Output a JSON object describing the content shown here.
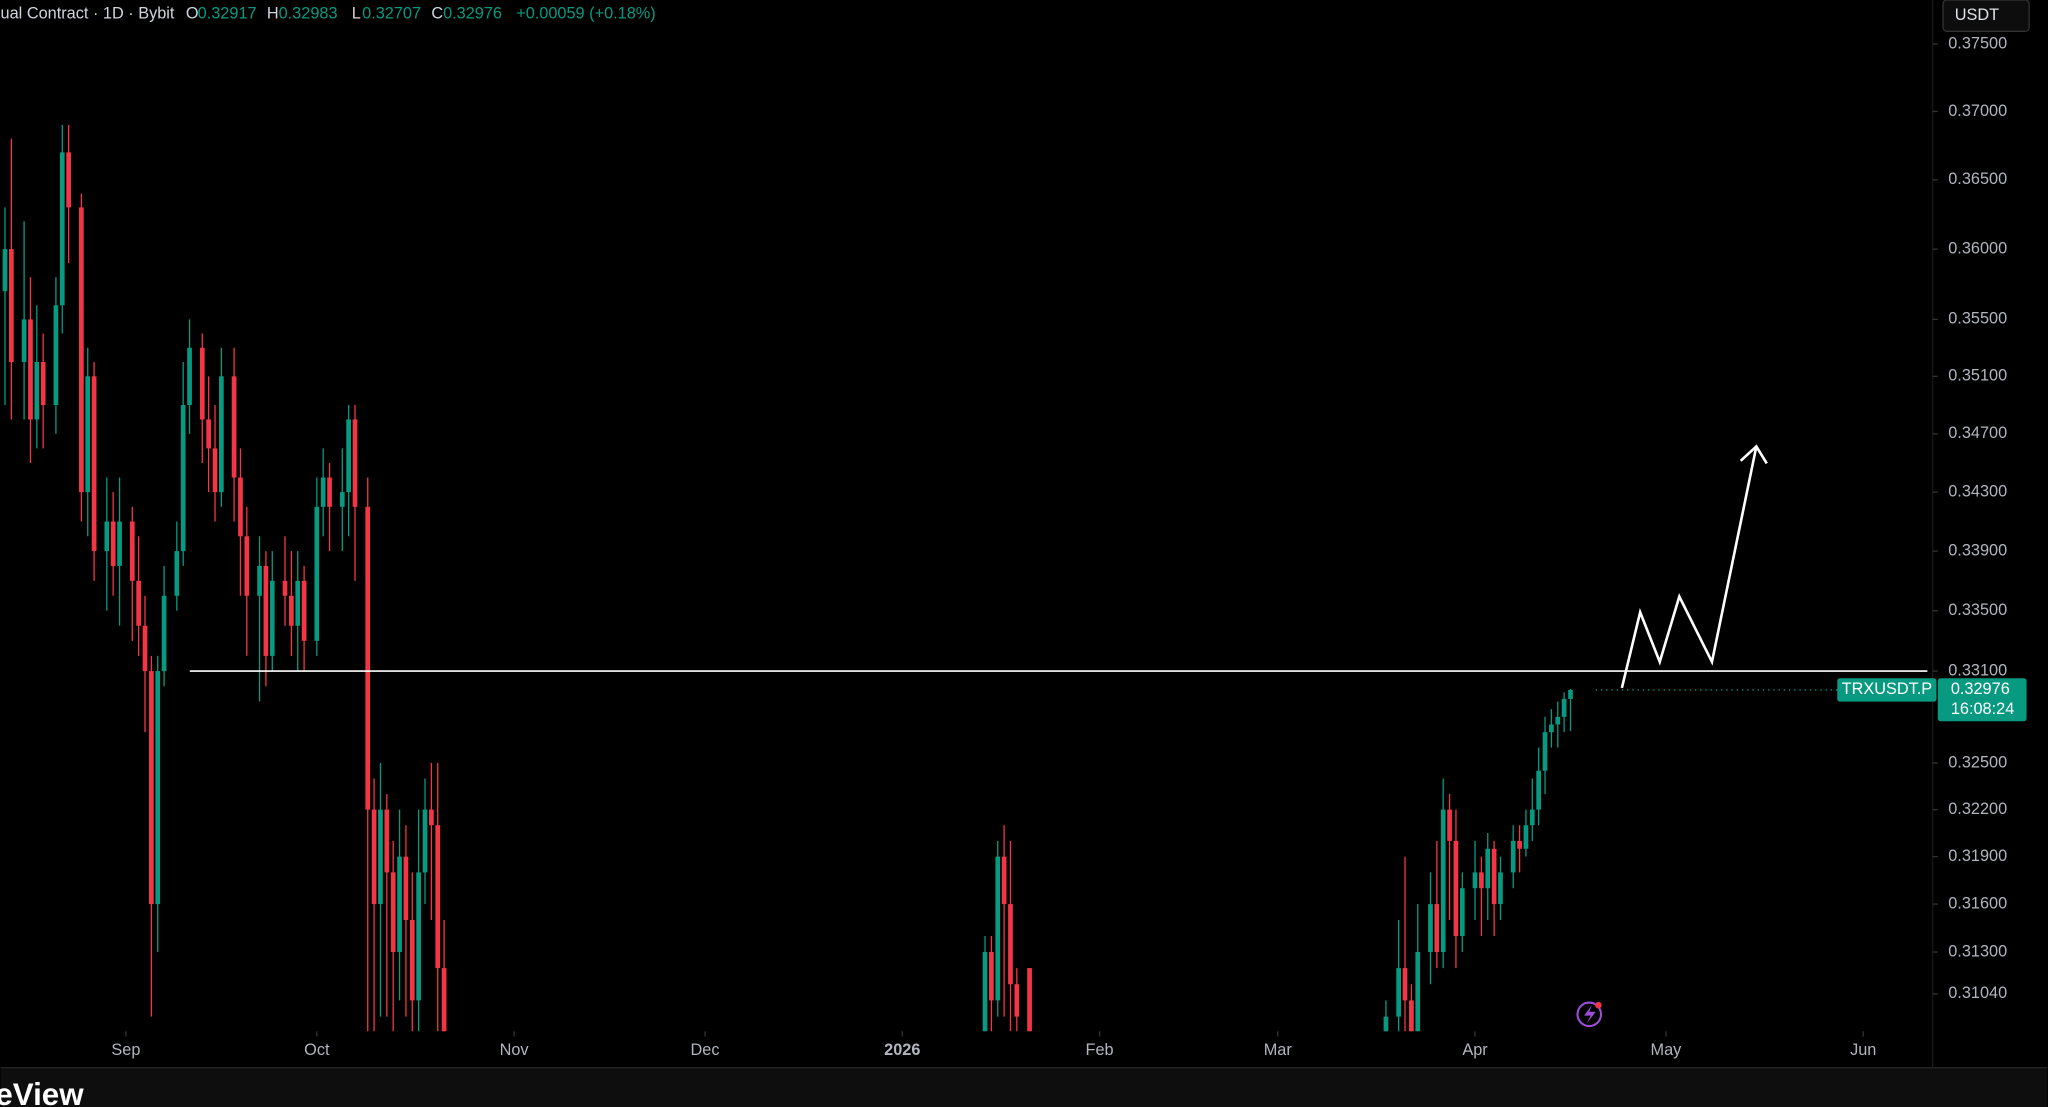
{
  "chart_data": {
    "type": "candlestick",
    "header": {
      "title": "ual Contract · 1D · Bybit",
      "ohlc": [
        {
          "key": "O",
          "value": "0.32917"
        },
        {
          "key": "H",
          "value": "0.32983"
        },
        {
          "key": "L",
          "value": "0.32707"
        },
        {
          "key": "C",
          "value": "0.32976"
        }
      ],
      "change": "+0.00059 (+0.18%)"
    },
    "currency": "USDT",
    "symbol": "TRXUSDT.P",
    "countdown": "16:08:24",
    "brand": "eView",
    "up_color": "#089981",
    "down_color": "#f23645",
    "log_scale": true,
    "hline": 0.331,
    "x": [
      -19,
      -18,
      -16,
      -15,
      -14,
      -13,
      -11,
      -10,
      -9,
      -7,
      -6,
      -5,
      -3,
      -2,
      -1,
      1,
      2,
      3,
      4,
      5,
      6,
      8,
      9,
      10,
      12,
      13,
      14,
      15,
      17,
      18,
      19,
      21,
      22,
      23,
      25,
      26,
      27,
      28,
      30,
      31,
      32,
      34,
      35,
      36,
      38,
      39,
      40,
      41,
      42,
      43,
      44,
      45,
      46,
      47,
      48,
      49,
      50,
      135,
      136,
      137,
      138,
      139,
      140,
      142,
      198,
      200,
      201,
      202,
      203,
      205,
      206,
      207,
      208,
      209,
      210,
      212,
      213,
      214,
      215,
      216,
      218,
      219,
      220,
      221,
      222,
      223,
      224,
      225,
      226,
      227
    ],
    "open": [
      0.357,
      0.36,
      0.352,
      0.355,
      0.348,
      0.352,
      0.349,
      0.356,
      0.367,
      0.363,
      0.343,
      0.351,
      0.339,
      0.341,
      0.338,
      0.341,
      0.337,
      0.334,
      0.331,
      0.316,
      0.331,
      0.336,
      0.339,
      0.349,
      0.353,
      0.348,
      0.346,
      0.343,
      0.351,
      0.344,
      0.34,
      0.336,
      0.338,
      0.332,
      0.337,
      0.336,
      0.334,
      0.337,
      0.333,
      0.342,
      0.344,
      0.342,
      0.343,
      0.348,
      0.342,
      0.322,
      0.316,
      0.322,
      0.318,
      0.313,
      0.319,
      0.315,
      0.31,
      0.318,
      0.322,
      0.321,
      0.312,
      0.308,
      0.313,
      0.31,
      0.319,
      0.316,
      0.311,
      0.312,
      0.308,
      0.309,
      0.312,
      0.31,
      0.308,
      0.313,
      0.316,
      0.313,
      0.322,
      0.32,
      0.314,
      0.317,
      0.318,
      0.317,
      0.3195,
      0.316,
      0.318,
      0.32,
      0.3195,
      0.321,
      0.322,
      0.3245,
      0.327,
      0.3275,
      0.328,
      0.32917
    ],
    "high": [
      0.363,
      0.368,
      0.362,
      0.358,
      0.356,
      0.354,
      0.358,
      0.369,
      0.369,
      0.364,
      0.353,
      0.352,
      0.344,
      0.343,
      0.344,
      0.342,
      0.34,
      0.336,
      0.332,
      0.332,
      0.338,
      0.341,
      0.352,
      0.355,
      0.354,
      0.351,
      0.349,
      0.353,
      0.353,
      0.346,
      0.342,
      0.34,
      0.339,
      0.339,
      0.34,
      0.339,
      0.339,
      0.338,
      0.344,
      0.346,
      0.345,
      0.346,
      0.349,
      0.349,
      0.344,
      0.324,
      0.325,
      0.323,
      0.32,
      0.322,
      0.321,
      0.318,
      0.322,
      0.324,
      0.325,
      0.325,
      0.315,
      0.314,
      0.314,
      0.32,
      0.321,
      0.32,
      0.312,
      0.312,
      0.31,
      0.315,
      0.319,
      0.311,
      0.316,
      0.318,
      0.32,
      0.324,
      0.323,
      0.322,
      0.318,
      0.32,
      0.319,
      0.3205,
      0.32,
      0.319,
      0.321,
      0.321,
      0.322,
      0.324,
      0.326,
      0.328,
      0.3285,
      0.329,
      0.3296,
      0.32983
    ],
    "low": [
      0.349,
      0.348,
      0.348,
      0.345,
      0.346,
      0.346,
      0.347,
      0.354,
      0.359,
      0.341,
      0.34,
      0.337,
      0.335,
      0.336,
      0.334,
      0.333,
      0.332,
      0.327,
      0.309,
      0.313,
      0.33,
      0.335,
      0.338,
      0.347,
      0.345,
      0.343,
      0.341,
      0.342,
      0.341,
      0.336,
      0.332,
      0.329,
      0.33,
      0.331,
      0.334,
      0.332,
      0.331,
      0.331,
      0.332,
      0.34,
      0.339,
      0.339,
      0.34,
      0.337,
      0.308,
      0.308,
      0.309,
      0.309,
      0.308,
      0.31,
      0.309,
      0.308,
      0.308,
      0.316,
      0.315,
      0.308,
      0.308,
      0.308,
      0.308,
      0.309,
      0.309,
      0.308,
      0.308,
      0.308,
      0.308,
      0.308,
      0.308,
      0.308,
      0.308,
      0.311,
      0.312,
      0.312,
      0.315,
      0.312,
      0.313,
      0.315,
      0.314,
      0.315,
      0.314,
      0.315,
      0.317,
      0.318,
      0.319,
      0.32,
      0.321,
      0.323,
      0.326,
      0.326,
      0.327,
      0.32707
    ],
    "close": [
      0.36,
      0.352,
      0.355,
      0.348,
      0.352,
      0.349,
      0.356,
      0.367,
      0.363,
      0.343,
      0.351,
      0.339,
      0.341,
      0.338,
      0.341,
      0.337,
      0.334,
      0.331,
      0.316,
      0.331,
      0.336,
      0.339,
      0.349,
      0.353,
      0.348,
      0.346,
      0.343,
      0.351,
      0.344,
      0.34,
      0.336,
      0.338,
      0.332,
      0.337,
      0.336,
      0.334,
      0.337,
      0.333,
      0.342,
      0.344,
      0.342,
      0.343,
      0.348,
      0.342,
      0.322,
      0.316,
      0.322,
      0.318,
      0.313,
      0.319,
      0.315,
      0.31,
      0.318,
      0.322,
      0.321,
      0.312,
      0.308,
      0.313,
      0.31,
      0.319,
      0.316,
      0.311,
      0.309,
      0.308,
      0.309,
      0.312,
      0.31,
      0.308,
      0.313,
      0.316,
      0.313,
      0.322,
      0.32,
      0.314,
      0.317,
      0.318,
      0.317,
      0.3195,
      0.316,
      0.318,
      0.32,
      0.3195,
      0.321,
      0.322,
      0.3245,
      0.327,
      0.3275,
      0.328,
      0.32917,
      0.32976
    ],
    "xlim": [
      -19.7,
      283.9
    ],
    "xticks": [
      {
        "value": 0,
        "label": "Sep"
      },
      {
        "value": 30,
        "label": "Oct"
      },
      {
        "value": 61,
        "label": "Nov"
      },
      {
        "value": 91,
        "label": "Dec"
      },
      {
        "value": 122,
        "label": "2026"
      },
      {
        "value": 153,
        "label": "Feb"
      },
      {
        "value": 181,
        "label": "Mar"
      },
      {
        "value": 212,
        "label": "Apr"
      },
      {
        "value": 242,
        "label": "May"
      },
      {
        "value": 273,
        "label": "Jun"
      }
    ],
    "ylim": [
      0.3081,
      0.3783
    ],
    "yticks": [
      {
        "value": 0.375,
        "label": "0.37500"
      },
      {
        "value": 0.37,
        "label": "0.37000"
      },
      {
        "value": 0.365,
        "label": "0.36500"
      },
      {
        "value": 0.36,
        "label": "0.36000"
      },
      {
        "value": 0.355,
        "label": "0.35500"
      },
      {
        "value": 0.351,
        "label": "0.35100"
      },
      {
        "value": 0.347,
        "label": "0.34700"
      },
      {
        "value": 0.343,
        "label": "0.34300"
      },
      {
        "value": 0.339,
        "label": "0.33900"
      },
      {
        "value": 0.335,
        "label": "0.33500"
      },
      {
        "value": 0.331,
        "label": "0.33100"
      },
      {
        "value": 0.325,
        "label": "0.32500"
      },
      {
        "value": 0.322,
        "label": "0.32200"
      },
      {
        "value": 0.319,
        "label": "0.31900"
      },
      {
        "value": 0.316,
        "label": "0.31600"
      },
      {
        "value": 0.313,
        "label": "0.31300"
      },
      {
        "value": 0.3104,
        "label": "0.31040"
      }
    ]
  }
}
